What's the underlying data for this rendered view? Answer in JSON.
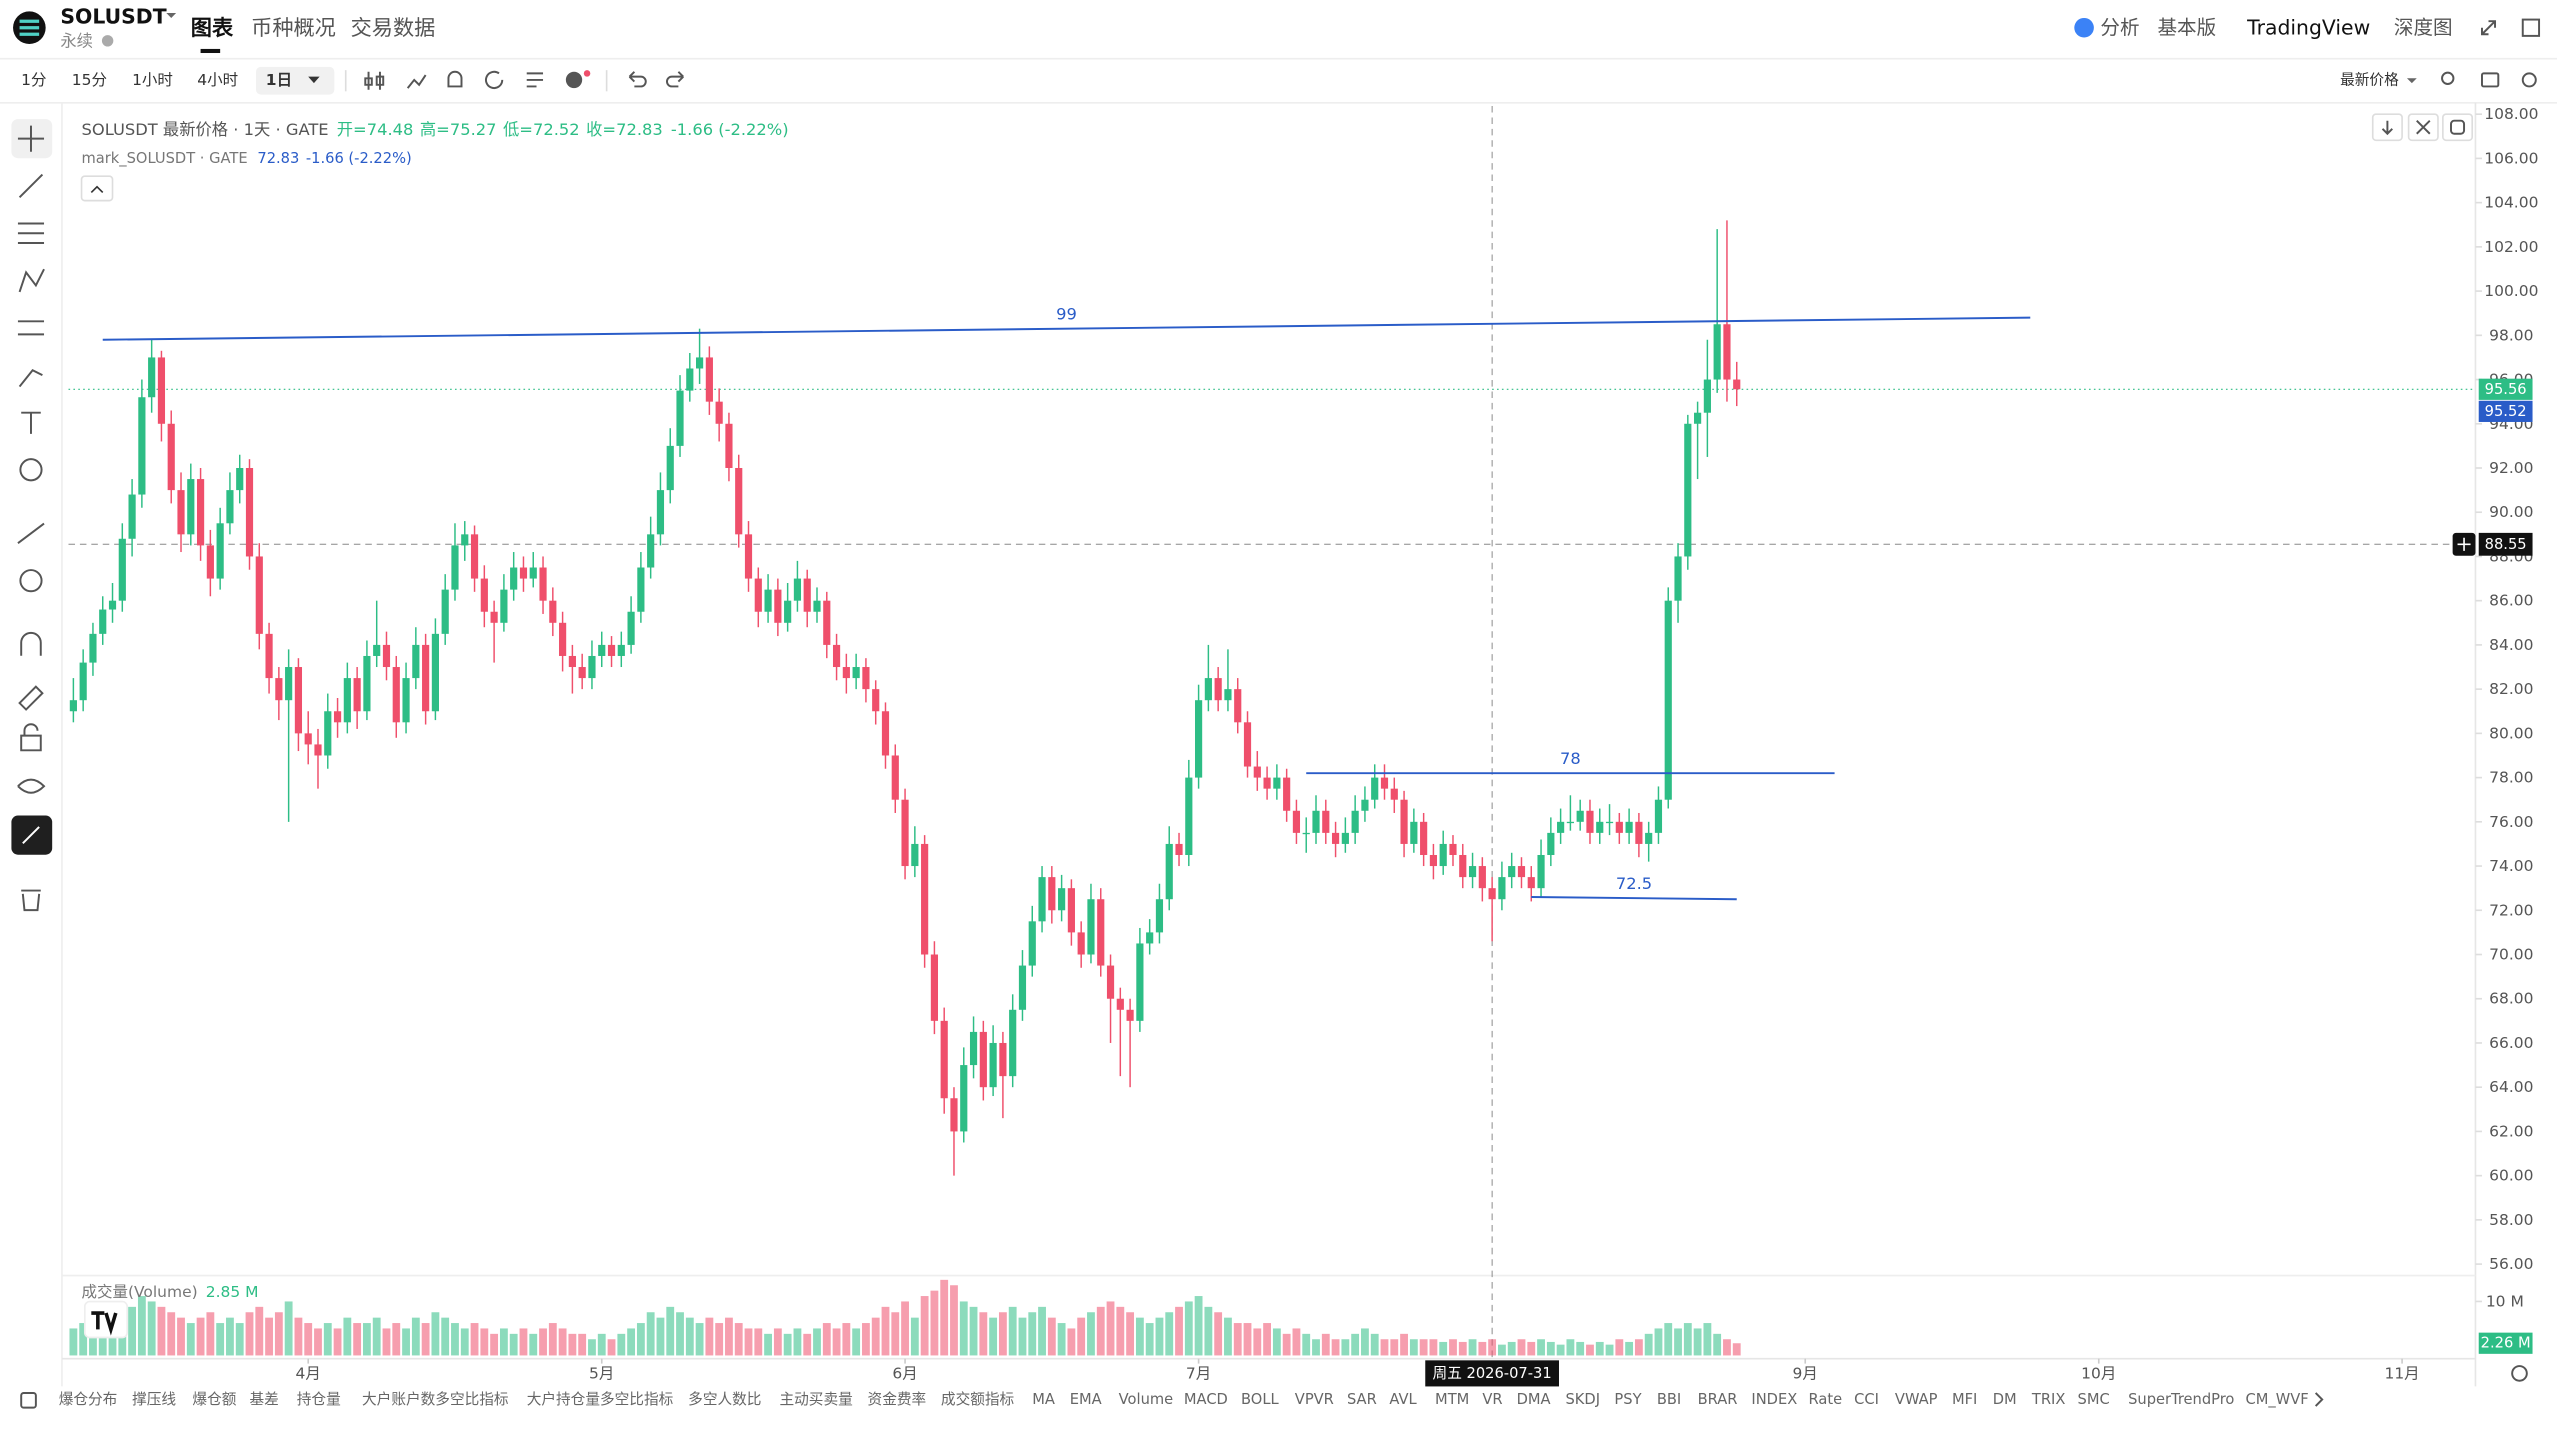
{
  "header": {
    "symbol": "SOLUSDT",
    "contract": "永续",
    "tabs": [
      "图表",
      "币种概况",
      "交易数据"
    ],
    "right_links": [
      "分析",
      "基本版",
      "TradingView",
      "深度图"
    ]
  },
  "toolbar": {
    "intervals": [
      "1分",
      "15分",
      "1小时",
      "4小时",
      "1日"
    ],
    "price_type": "最新价格"
  },
  "chart_data": {
    "type": "candlestick",
    "legend": {
      "title": "SOLUSDT 最新价格 · 1天 · GATE",
      "ohlc": [
        "开=74.48",
        "高=75.27",
        "低=72.52",
        "收=72.83"
      ],
      "change": "-1.66 (-2.22%)"
    },
    "mark_legend": {
      "name": "mark_SOLUSDT · GATE",
      "value": "72.83",
      "change": "-1.66 (-2.22%)"
    },
    "up_color": "#2dbd85",
    "down_color": "#ef4f6b",
    "candles": [
      [
        81,
        82.5,
        80.5,
        81.5
      ],
      [
        81.5,
        83.8,
        81,
        83.2
      ],
      [
        83.2,
        85,
        82.6,
        84.5
      ],
      [
        84.5,
        86.2,
        84,
        85.6
      ],
      [
        85.6,
        86.8,
        85,
        86
      ],
      [
        86,
        89.5,
        85.5,
        88.8
      ],
      [
        88.8,
        91.5,
        88,
        90.8
      ],
      [
        90.8,
        96,
        90.2,
        95.2
      ],
      [
        95.2,
        97.8,
        94.5,
        97
      ],
      [
        97,
        97.3,
        93.2,
        94
      ],
      [
        94,
        94.6,
        90.4,
        91
      ],
      [
        91,
        91.8,
        88.2,
        89
      ],
      [
        89,
        92.2,
        88.5,
        91.5
      ],
      [
        91.5,
        92,
        87.8,
        88.5
      ],
      [
        88.5,
        89.2,
        86.2,
        87
      ],
      [
        87,
        90.2,
        86.5,
        89.5
      ],
      [
        89.5,
        91.8,
        89,
        91
      ],
      [
        91,
        92.6,
        90.4,
        92
      ],
      [
        92,
        92.4,
        87.4,
        88
      ],
      [
        88,
        88.6,
        83.8,
        84.5
      ],
      [
        84.5,
        85,
        81.8,
        82.5
      ],
      [
        82.5,
        83,
        80.6,
        81.5
      ],
      [
        81.5,
        83.8,
        76,
        83
      ],
      [
        83,
        83.4,
        79.2,
        80
      ],
      [
        80,
        81,
        78.6,
        79.5
      ],
      [
        79.5,
        80.2,
        77.5,
        79
      ],
      [
        79,
        81.8,
        78.4,
        81
      ],
      [
        81,
        81.6,
        79.8,
        80.5
      ],
      [
        80.5,
        83.2,
        80,
        82.5
      ],
      [
        82.5,
        83,
        80.2,
        81
      ],
      [
        81,
        84.2,
        80.6,
        83.5
      ],
      [
        83.5,
        86,
        83,
        84
      ],
      [
        84,
        84.6,
        82.4,
        83
      ],
      [
        83,
        83.5,
        79.8,
        80.5
      ],
      [
        80.5,
        83.2,
        80,
        82.5
      ],
      [
        82.5,
        84.8,
        82,
        84
      ],
      [
        84,
        84.5,
        80.4,
        81
      ],
      [
        81,
        85.2,
        80.6,
        84.5
      ],
      [
        84.5,
        87.2,
        84,
        86.5
      ],
      [
        86.5,
        89.5,
        86,
        88.5
      ],
      [
        88.5,
        89.6,
        87.8,
        89
      ],
      [
        89,
        89.4,
        86.4,
        87
      ],
      [
        87,
        87.6,
        84.8,
        85.5
      ],
      [
        85.5,
        86,
        83.2,
        85
      ],
      [
        85,
        87.2,
        84.6,
        86.5
      ],
      [
        86.5,
        88.2,
        86,
        87.5
      ],
      [
        87.5,
        88,
        86.4,
        87
      ],
      [
        87,
        88.2,
        86.6,
        87.5
      ],
      [
        87.5,
        88,
        85.4,
        86
      ],
      [
        86,
        86.6,
        84.4,
        85
      ],
      [
        85,
        85.5,
        82.8,
        83.5
      ],
      [
        83.5,
        84,
        81.8,
        83
      ],
      [
        83,
        83.6,
        82,
        82.5
      ],
      [
        82.5,
        84.2,
        82,
        83.5
      ],
      [
        83.5,
        84.6,
        83,
        84
      ],
      [
        84,
        84.4,
        83,
        83.5
      ],
      [
        83.5,
        84.6,
        83,
        84
      ],
      [
        84,
        86.2,
        83.6,
        85.5
      ],
      [
        85.5,
        88.2,
        85,
        87.5
      ],
      [
        87.5,
        89.8,
        87,
        89
      ],
      [
        89,
        91.8,
        88.5,
        91
      ],
      [
        91,
        93.8,
        90.4,
        93
      ],
      [
        93,
        96.2,
        92.5,
        95.5
      ],
      [
        95.5,
        97.2,
        95,
        96.5
      ],
      [
        96.5,
        98.3,
        95.8,
        97
      ],
      [
        97,
        97.5,
        94.4,
        95
      ],
      [
        95,
        95.6,
        93.2,
        94
      ],
      [
        94,
        94.5,
        91.4,
        92
      ],
      [
        92,
        92.6,
        88.4,
        89
      ],
      [
        89,
        89.6,
        86.4,
        87
      ],
      [
        87,
        87.5,
        84.8,
        85.5
      ],
      [
        85.5,
        87.2,
        85,
        86.5
      ],
      [
        86.5,
        87,
        84.4,
        85
      ],
      [
        85,
        86.8,
        84.6,
        86
      ],
      [
        86,
        87.8,
        85.5,
        87
      ],
      [
        87,
        87.4,
        84.8,
        85.5
      ],
      [
        85.5,
        86.6,
        85,
        86
      ],
      [
        86,
        86.4,
        83.4,
        84
      ],
      [
        84,
        84.5,
        82.4,
        83
      ],
      [
        83,
        83.6,
        81.8,
        82.5
      ],
      [
        82.5,
        83.6,
        82,
        83
      ],
      [
        83,
        83.4,
        81.4,
        82
      ],
      [
        82,
        82.4,
        80.4,
        81
      ],
      [
        81,
        81.4,
        78.4,
        79
      ],
      [
        79,
        79.5,
        76.4,
        77
      ],
      [
        77,
        77.5,
        73.4,
        74
      ],
      [
        74,
        75.8,
        73.5,
        75
      ],
      [
        75,
        75.4,
        69.4,
        70
      ],
      [
        70,
        70.6,
        66.4,
        67
      ],
      [
        67,
        67.6,
        62.8,
        63.5
      ],
      [
        63.5,
        64,
        60,
        62
      ],
      [
        62,
        65.8,
        61.5,
        65
      ],
      [
        65,
        67.2,
        64.4,
        66.5
      ],
      [
        66.5,
        67,
        63.4,
        64
      ],
      [
        64,
        66.8,
        63.6,
        66
      ],
      [
        66,
        66.5,
        62.6,
        64.5
      ],
      [
        64.5,
        68.2,
        64,
        67.5
      ],
      [
        67.5,
        70.2,
        67,
        69.5
      ],
      [
        69.5,
        72.2,
        69,
        71.5
      ],
      [
        71.5,
        74,
        71,
        73.5
      ],
      [
        73.5,
        74,
        71.4,
        72
      ],
      [
        72,
        73.6,
        71.5,
        73
      ],
      [
        73,
        73.4,
        70.4,
        71
      ],
      [
        71,
        71.5,
        69.4,
        70
      ],
      [
        70,
        73.2,
        69.6,
        72.5
      ],
      [
        72.5,
        73,
        69,
        69.5
      ],
      [
        69.5,
        70,
        66,
        68
      ],
      [
        68,
        68.5,
        64.5,
        67.5
      ],
      [
        67.5,
        68,
        64,
        67
      ],
      [
        67,
        71.2,
        66.5,
        70.5
      ],
      [
        70.5,
        71.6,
        70,
        71
      ],
      [
        71,
        73.2,
        70.5,
        72.5
      ],
      [
        72.5,
        75.8,
        72,
        75
      ],
      [
        75,
        75.5,
        74,
        74.5
      ],
      [
        74.5,
        78.8,
        74,
        78
      ],
      [
        78,
        82.2,
        77.5,
        81.5
      ],
      [
        81.5,
        84,
        81,
        82.5
      ],
      [
        82.5,
        83,
        81,
        81.5
      ],
      [
        81.5,
        83.8,
        81,
        82
      ],
      [
        82,
        82.5,
        80,
        80.5
      ],
      [
        80.5,
        81,
        78,
        78.5
      ],
      [
        78.5,
        79.2,
        77.4,
        78
      ],
      [
        78,
        78.5,
        77,
        77.5
      ],
      [
        77.5,
        78.6,
        77,
        78
      ],
      [
        78,
        78.4,
        76,
        76.5
      ],
      [
        76.5,
        77,
        75,
        75.5
      ],
      [
        75.5,
        76.2,
        74.6,
        75.5
      ],
      [
        75.5,
        77.2,
        75,
        76.5
      ],
      [
        76.5,
        77,
        75,
        75.5
      ],
      [
        75.5,
        76,
        74.4,
        75
      ],
      [
        75,
        76.2,
        74.6,
        75.5
      ],
      [
        75.5,
        77.2,
        75,
        76.5
      ],
      [
        76.5,
        77.6,
        76,
        77
      ],
      [
        77,
        78.6,
        76.6,
        78
      ],
      [
        78,
        78.6,
        77,
        77.5
      ],
      [
        77.5,
        78,
        76.4,
        77
      ],
      [
        77,
        77.4,
        74.4,
        75
      ],
      [
        75,
        76.6,
        74.6,
        76
      ],
      [
        76,
        76.4,
        74,
        74.5
      ],
      [
        74.5,
        75,
        73.4,
        74
      ],
      [
        74,
        75.6,
        73.6,
        75
      ],
      [
        75,
        75.4,
        74,
        74.5
      ],
      [
        74.5,
        75,
        73,
        73.5
      ],
      [
        73.5,
        74.6,
        73,
        74
      ],
      [
        74,
        74.4,
        72.4,
        73
      ],
      [
        73,
        73.5,
        70.6,
        72.5
      ],
      [
        72.5,
        74.2,
        72,
        73.5
      ],
      [
        73.5,
        74.6,
        73,
        74
      ],
      [
        74,
        74.4,
        73,
        73.5
      ],
      [
        73.5,
        74,
        72.4,
        73
      ],
      [
        73,
        75.2,
        72.6,
        74.5
      ],
      [
        74.5,
        76.2,
        74,
        75.5
      ],
      [
        75.5,
        76.6,
        75,
        76
      ],
      [
        76,
        77.2,
        75.6,
        76
      ],
      [
        76,
        77,
        75.6,
        76.5
      ],
      [
        76.5,
        77,
        75,
        75.5
      ],
      [
        75.5,
        76.6,
        75,
        76
      ],
      [
        76,
        76.8,
        75.4,
        76
      ],
      [
        76,
        76.4,
        75,
        75.5
      ],
      [
        75.5,
        76.6,
        75,
        76
      ],
      [
        76,
        76.4,
        74.4,
        75
      ],
      [
        75,
        76,
        74.2,
        75.5
      ],
      [
        75.5,
        77.6,
        75,
        77
      ],
      [
        77,
        86.6,
        76.6,
        86
      ],
      [
        86,
        88.6,
        85,
        88
      ],
      [
        88,
        94.4,
        87.4,
        94
      ],
      [
        94,
        95,
        91.5,
        94.5
      ],
      [
        94.5,
        97.8,
        92.5,
        96
      ],
      [
        96,
        102.8,
        95.4,
        98.5
      ],
      [
        98.5,
        103.2,
        95,
        96
      ],
      [
        96,
        96.8,
        94.8,
        95.56
      ]
    ],
    "xlim": [
      -0.5,
      245
    ],
    "xticks": [
      {
        "value": 24,
        "label": "4月"
      },
      {
        "value": 54,
        "label": "5月"
      },
      {
        "value": 85,
        "label": "6月"
      },
      {
        "value": 115,
        "label": "7月"
      },
      {
        "value": 177,
        "label": "9月"
      },
      {
        "value": 207,
        "label": "10月"
      },
      {
        "value": 238,
        "label": "11月"
      }
    ],
    "ylim": [
      56,
      108
    ],
    "yticks": [
      {
        "value": 56,
        "label": "56.00"
      },
      {
        "value": 58,
        "label": "58.00"
      },
      {
        "value": 60,
        "label": "60.00"
      },
      {
        "value": 62,
        "label": "62.00"
      },
      {
        "value": 64,
        "label": "64.00"
      },
      {
        "value": 66,
        "label": "66.00"
      },
      {
        "value": 68,
        "label": "68.00"
      },
      {
        "value": 70,
        "label": "70.00"
      },
      {
        "value": 72,
        "label": "72.00"
      },
      {
        "value": 74,
        "label": "74.00"
      },
      {
        "value": 76,
        "label": "76.00"
      },
      {
        "value": 78,
        "label": "78.00"
      },
      {
        "value": 80,
        "label": "80.00"
      },
      {
        "value": 82,
        "label": "82.00"
      },
      {
        "value": 84,
        "label": "84.00"
      },
      {
        "value": 86,
        "label": "86.00"
      },
      {
        "value": 88,
        "label": "88.00"
      },
      {
        "value": 90,
        "label": "90.00"
      },
      {
        "value": 92,
        "label": "92.00"
      },
      {
        "value": 94,
        "label": "94.00"
      },
      {
        "value": 96,
        "label": "96.00"
      },
      {
        "value": 98,
        "label": "98.00"
      },
      {
        "value": 100,
        "label": "100.00"
      },
      {
        "value": 102,
        "label": "102.00"
      },
      {
        "value": 104,
        "label": "104.00"
      },
      {
        "value": 106,
        "label": "106.00"
      },
      {
        "value": 108,
        "label": "108.00"
      }
    ],
    "last_price": {
      "value": 95.56,
      "label": "95.56"
    },
    "mark_price": {
      "value": 95.52,
      "label": "95.52"
    },
    "crosshair": {
      "x": 145,
      "x_label": "周五 2026-07-31",
      "y": 88.55,
      "y_label": "88.55"
    },
    "trendlines": [
      {
        "label": "99",
        "x": [
          3,
          200
        ],
        "y": [
          97.8,
          98.8
        ]
      },
      {
        "label": "78",
        "x": [
          126,
          180
        ],
        "y": [
          78.2,
          78.2
        ]
      },
      {
        "label": "72.5",
        "x": [
          149,
          170
        ],
        "y": [
          72.6,
          72.5
        ]
      }
    ],
    "volume": {
      "title": "成交量(Volume)",
      "value_label": "2.85 M",
      "ylim": [
        0,
        14.5
      ],
      "yticks": [
        {
          "value": 10,
          "label": "10 M"
        }
      ],
      "last": {
        "value": 2.26,
        "label": "2.26 M"
      },
      "values": [
        5,
        6,
        7,
        6,
        5,
        8,
        9,
        11,
        10,
        9,
        8,
        7,
        6,
        7,
        8,
        6,
        7,
        6,
        8,
        9,
        7,
        8,
        10,
        7,
        6,
        5,
        6,
        5,
        7,
        6,
        6,
        7,
        5,
        6,
        5,
        7,
        6,
        8,
        7,
        6,
        5,
        6,
        5,
        4,
        5,
        4,
        5,
        4,
        5,
        6,
        5,
        4,
        4,
        3,
        4,
        3,
        4,
        5,
        6,
        8,
        7,
        9,
        8,
        7,
        6,
        7,
        6,
        7,
        6,
        5,
        5,
        4,
        5,
        4,
        5,
        4,
        5,
        6,
        5,
        6,
        5,
        6,
        7,
        9,
        8,
        10,
        7,
        11,
        12,
        14,
        13,
        10,
        9,
        8,
        7,
        8,
        9,
        7,
        8,
        9,
        7,
        6,
        5,
        7,
        8,
        9,
        10,
        9,
        8,
        7,
        6,
        7,
        8,
        9,
        10,
        11,
        9,
        8,
        7,
        6,
        6,
        5,
        6,
        5,
        4,
        5,
        4,
        3,
        4,
        3,
        3,
        4,
        5,
        4,
        3,
        3,
        4,
        3,
        3,
        3,
        2.5,
        3,
        2.5,
        3,
        2.5,
        3,
        2,
        2.5,
        3,
        2.5,
        3,
        2.5,
        2,
        3,
        2.5,
        2,
        2.5,
        2,
        3,
        2.5,
        3,
        4,
        5,
        6,
        5,
        6,
        5,
        6,
        4,
        3,
        2.26
      ]
    }
  },
  "indicators": [
    "爆仓分布",
    "撑压线",
    "爆仓额",
    "基差",
    "持仓量",
    "大户账户数多空比指标",
    "大户持仓量多空比指标",
    "多空人数比",
    "主动买卖量",
    "资金费率",
    "成交额指标",
    "MA",
    "EMA",
    "Volume",
    "MACD",
    "BOLL",
    "VPVR",
    "SAR",
    "AVL",
    "MTM",
    "VR",
    "DMA",
    "SKDJ",
    "PSY",
    "BBI",
    "BRAR",
    "INDEX",
    "Rate",
    "CCI",
    "VWAP",
    "MFI",
    "DM",
    "TRIX",
    "SMC",
    "SuperTrendPro",
    "CM_WVF"
  ]
}
